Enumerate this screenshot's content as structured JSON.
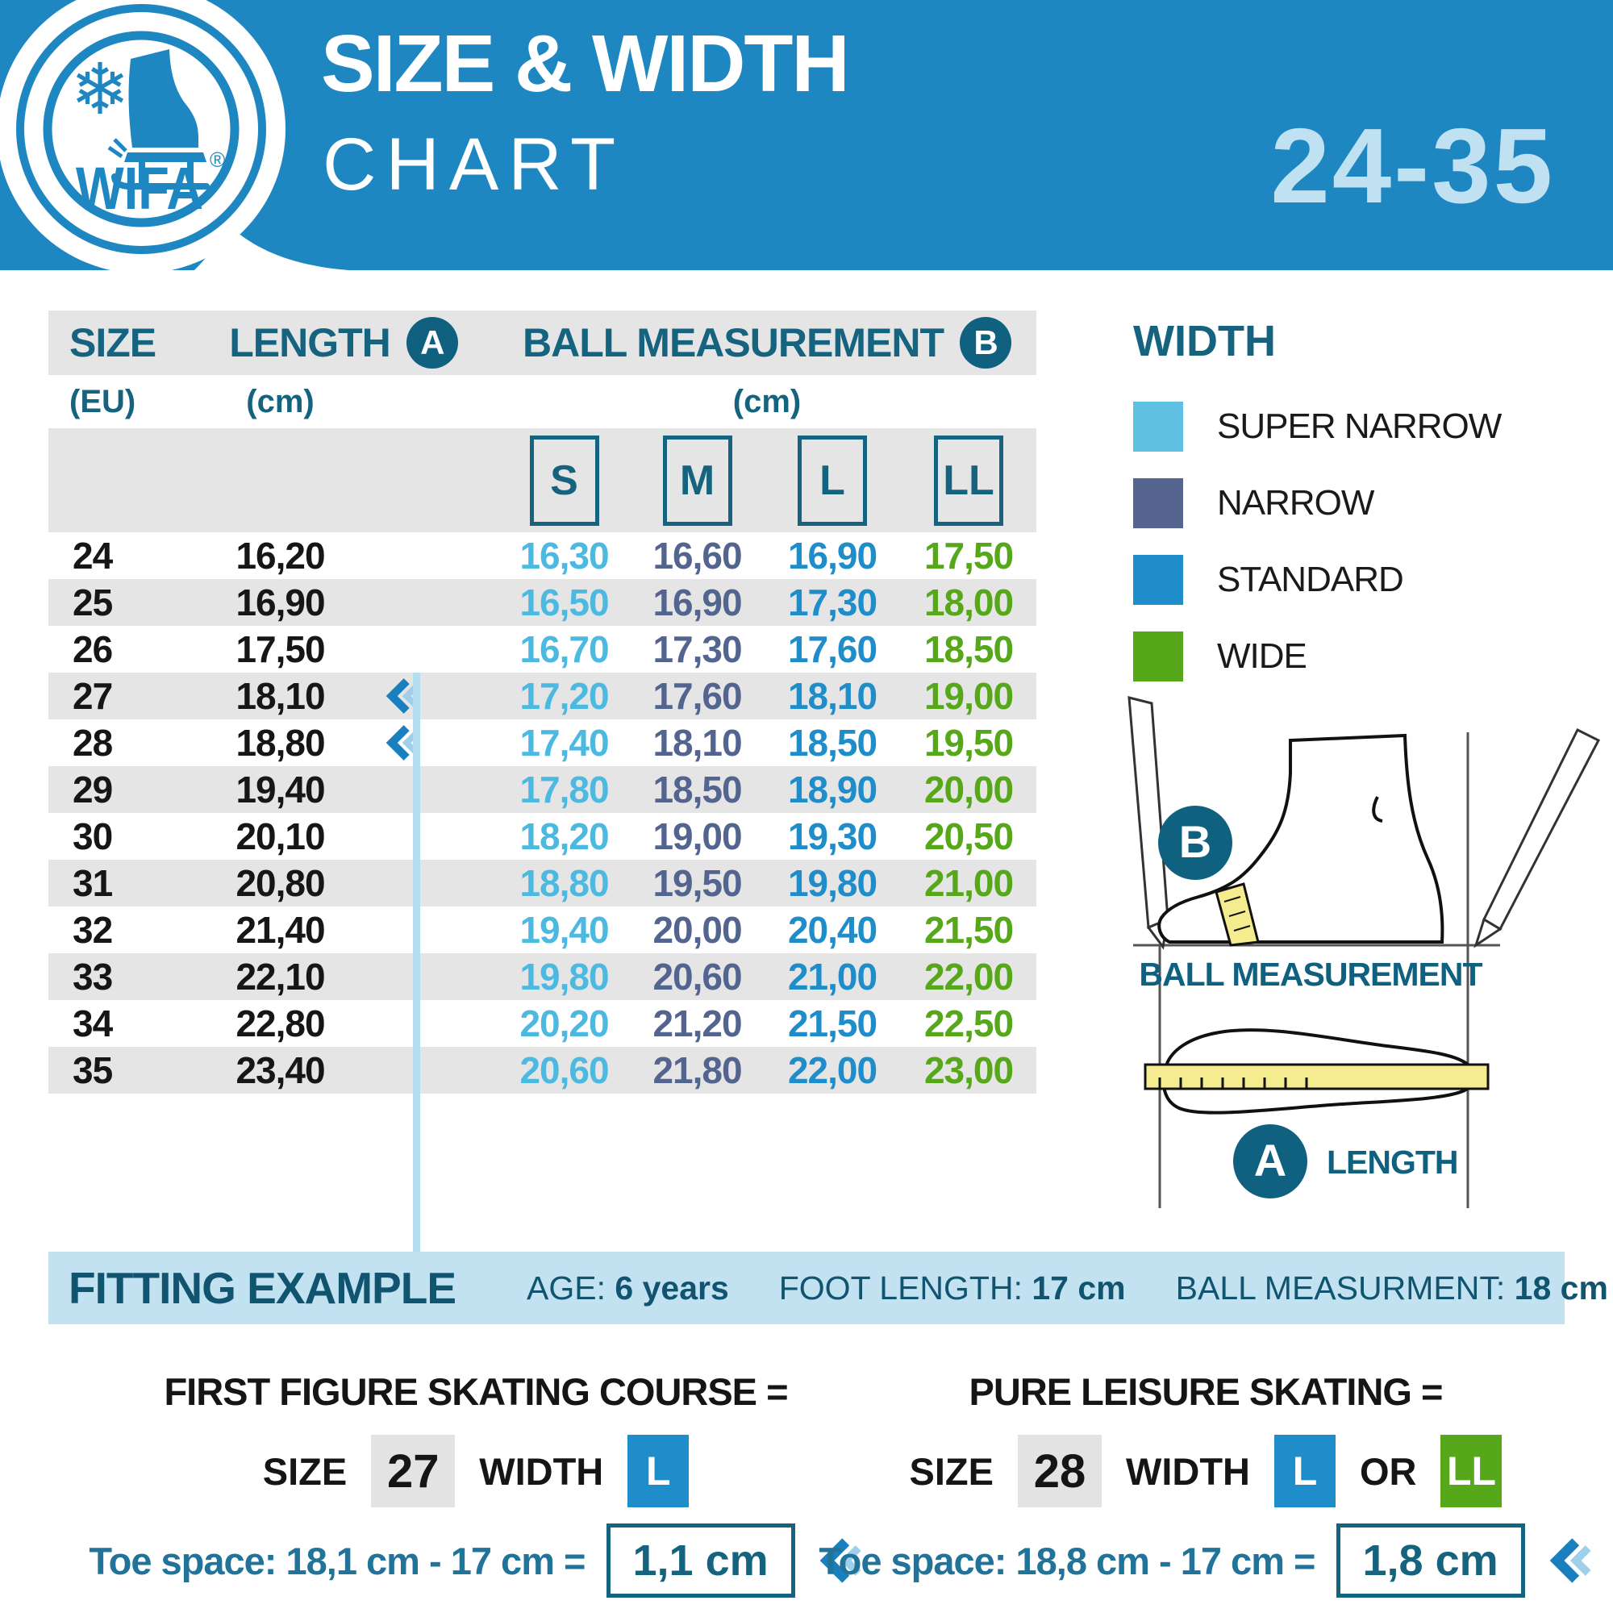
{
  "header": {
    "title_line1": "SIZE & WIDTH",
    "title_line2": "CHART",
    "size_range": "24-35",
    "logo": {
      "brand": "WIFA",
      "reg": "®"
    }
  },
  "table": {
    "headers": {
      "size": "SIZE",
      "size_unit": "(EU)",
      "length": "LENGTH",
      "length_badge": "A",
      "length_unit": "(cm)",
      "ball": "BALL MEASUREMENT",
      "ball_badge": "B",
      "ball_unit": "(cm)",
      "widths": [
        "S",
        "M",
        "L",
        "LL"
      ]
    },
    "rows": [
      {
        "size": "24",
        "length": "16,20",
        "marker": false,
        "s": "16,30",
        "m": "16,60",
        "l": "16,90",
        "ll": "17,50"
      },
      {
        "size": "25",
        "length": "16,90",
        "marker": false,
        "s": "16,50",
        "m": "16,90",
        "l": "17,30",
        "ll": "18,00"
      },
      {
        "size": "26",
        "length": "17,50",
        "marker": false,
        "s": "16,70",
        "m": "17,30",
        "l": "17,60",
        "ll": "18,50"
      },
      {
        "size": "27",
        "length": "18,10",
        "marker": true,
        "s": "17,20",
        "m": "17,60",
        "l": "18,10",
        "ll": "19,00"
      },
      {
        "size": "28",
        "length": "18,80",
        "marker": true,
        "s": "17,40",
        "m": "18,10",
        "l": "18,50",
        "ll": "19,50"
      },
      {
        "size": "29",
        "length": "19,40",
        "marker": false,
        "s": "17,80",
        "m": "18,50",
        "l": "18,90",
        "ll": "20,00"
      },
      {
        "size": "30",
        "length": "20,10",
        "marker": false,
        "s": "18,20",
        "m": "19,00",
        "l": "19,30",
        "ll": "20,50"
      },
      {
        "size": "31",
        "length": "20,80",
        "marker": false,
        "s": "18,80",
        "m": "19,50",
        "l": "19,80",
        "ll": "21,00"
      },
      {
        "size": "32",
        "length": "21,40",
        "marker": false,
        "s": "19,40",
        "m": "20,00",
        "l": "20,40",
        "ll": "21,50"
      },
      {
        "size": "33",
        "length": "22,10",
        "marker": false,
        "s": "19,80",
        "m": "20,60",
        "l": "21,00",
        "ll": "22,00"
      },
      {
        "size": "34",
        "length": "22,80",
        "marker": false,
        "s": "20,20",
        "m": "21,20",
        "l": "21,50",
        "ll": "22,50"
      },
      {
        "size": "35",
        "length": "23,40",
        "marker": false,
        "s": "20,60",
        "m": "21,80",
        "l": "22,00",
        "ll": "23,00"
      }
    ]
  },
  "width_legend": {
    "title": "WIDTH",
    "items": [
      {
        "label": "SUPER NARROW",
        "color": "#5fc0e4"
      },
      {
        "label": "NARROW",
        "color": "#55658f"
      },
      {
        "label": "STANDARD",
        "color": "#1e8dc9"
      },
      {
        "label": "WIDE",
        "color": "#57a71b"
      }
    ]
  },
  "diagram": {
    "b_badge": "B",
    "ball_label": "BALL MEASUREMENT",
    "a_badge": "A",
    "length_label": "LENGTH"
  },
  "fitting_example": {
    "title": "FITTING EXAMPLE",
    "items": [
      {
        "label": "AGE:",
        "value": "6 years"
      },
      {
        "label": "FOOT LENGTH:",
        "value": "17 cm"
      },
      {
        "label": "BALL MEASURMENT:",
        "value": "18 cm"
      }
    ]
  },
  "examples": {
    "left": {
      "heading": "FIRST FIGURE SKATING COURSE =",
      "size_label": "SIZE",
      "size_value": "27",
      "width_label": "WIDTH",
      "width_l": "L",
      "toe_label": "Toe space: 18,1 cm - 17 cm =",
      "toe_value": "1,1 cm"
    },
    "right": {
      "heading": "PURE LEISURE SKATING =",
      "size_label": "SIZE",
      "size_value": "28",
      "width_label": "WIDTH",
      "width_l": "L",
      "or_label": "OR",
      "width_ll": "LL",
      "toe_label": "Toe space: 18,8 cm - 17 cm =",
      "toe_value": "1,8 cm"
    }
  },
  "colors": {
    "band_blue": "#1e87c2",
    "pale_blue": "#c0e1f1",
    "teal": "#16637f",
    "row_gray": "#e5e5e5",
    "s_col": "#4cb9e0",
    "m_col": "#53658f",
    "l_col": "#1e8dc9",
    "ll_col": "#57a71b",
    "fit_band": "#c2e2f2",
    "line_blue": "#b5ddf0",
    "tape_yellow": "#f5ec8f"
  },
  "chart_data": {
    "type": "table",
    "title": "SIZE & WIDTH CHART 24-35",
    "columns": [
      "SIZE (EU)",
      "LENGTH (cm)",
      "BALL S (cm)",
      "BALL M (cm)",
      "BALL L (cm)",
      "BALL LL (cm)"
    ],
    "rows": [
      [
        24,
        16.2,
        16.3,
        16.6,
        16.9,
        17.5
      ],
      [
        25,
        16.9,
        16.5,
        16.9,
        17.3,
        18.0
      ],
      [
        26,
        17.5,
        16.7,
        17.3,
        17.6,
        18.5
      ],
      [
        27,
        18.1,
        17.2,
        17.6,
        18.1,
        19.0
      ],
      [
        28,
        18.8,
        17.4,
        18.1,
        18.5,
        19.5
      ],
      [
        29,
        19.4,
        17.8,
        18.5,
        18.9,
        20.0
      ],
      [
        30,
        20.1,
        18.2,
        19.0,
        19.3,
        20.5
      ],
      [
        31,
        20.8,
        18.8,
        19.5,
        19.8,
        21.0
      ],
      [
        32,
        21.4,
        19.4,
        20.0,
        20.4,
        21.5
      ],
      [
        33,
        22.1,
        19.8,
        20.6,
        21.0,
        22.0
      ],
      [
        34,
        22.8,
        20.2,
        21.2,
        21.5,
        22.5
      ],
      [
        35,
        23.4,
        20.6,
        21.8,
        22.0,
        23.0
      ]
    ],
    "annotations": [
      "marker rows: 27, 28"
    ]
  }
}
